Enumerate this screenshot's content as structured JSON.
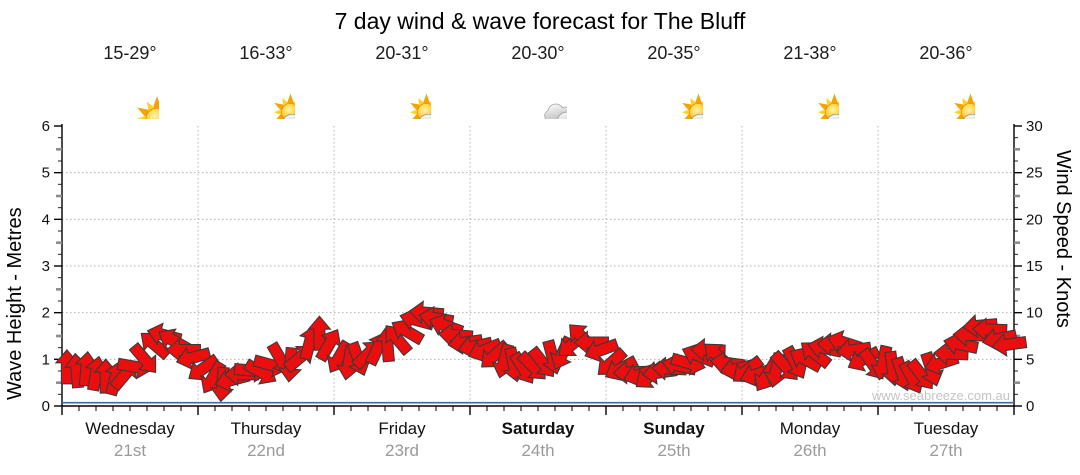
{
  "title": "7 day wind & wave forecast for The Bluff",
  "watermark": "www.seabreeze.com.au",
  "axes": {
    "left": {
      "label": "Wave Height - Metres",
      "ticks": [
        0,
        1,
        2,
        3,
        4,
        5,
        6
      ],
      "range": [
        0,
        6
      ]
    },
    "right": {
      "label": "Wind Speed - Knots",
      "ticks": [
        0,
        5,
        10,
        15,
        20,
        25,
        30
      ],
      "range": [
        0,
        30
      ]
    }
  },
  "days": [
    {
      "name": "Wednesday",
      "date": "21st",
      "temp": "15-29°",
      "icon": "sunny",
      "weekend": false
    },
    {
      "name": "Thursday",
      "date": "22nd",
      "temp": "16-33°",
      "icon": "partly-cloudy",
      "weekend": false
    },
    {
      "name": "Friday",
      "date": "23rd",
      "temp": "20-31°",
      "icon": "partly-cloudy",
      "weekend": false
    },
    {
      "name": "Saturday",
      "date": "24th",
      "temp": "20-30°",
      "icon": "cloudy",
      "weekend": true
    },
    {
      "name": "Sunday",
      "date": "25th",
      "temp": "20-35°",
      "icon": "partly-cloudy",
      "weekend": true
    },
    {
      "name": "Monday",
      "date": "26th",
      "temp": "21-38°",
      "icon": "partly-cloudy",
      "weekend": false
    },
    {
      "name": "Tuesday",
      "date": "27th",
      "temp": "20-36°",
      "icon": "partly-cloudy",
      "weekend": false
    }
  ],
  "chart_data": {
    "type": "scatter",
    "title": "7 day wind & wave forecast for The Bluff",
    "x_categories": [
      "Wednesday 21st",
      "Thursday 22nd",
      "Friday 23rd",
      "Saturday 24th",
      "Sunday 25th",
      "Monday 26th",
      "Tuesday 27th"
    ],
    "ylabel_left": "Wave Height - Metres",
    "ylabel_right": "Wind Speed - Knots",
    "ylim_left": [
      0,
      6
    ],
    "ylim_right": [
      0,
      30
    ],
    "grid": "dotted, horizontal each metre, vertical each day boundary",
    "legend": "none",
    "marker": "red block arrows showing wind speed (right axis) and direction",
    "arrow_color": "#ea0e0e",
    "arrow_outline": "#3a3a3a",
    "wave_line_color": "#3a6ea5",
    "wave_height_m_flat": 0.05,
    "samples_per_day": 14,
    "wind_knots": [
      [
        4.2,
        3.8,
        4.0,
        3.5,
        3.2,
        3.0,
        3.4,
        4.2,
        5.0,
        6.6,
        7.6,
        7.0,
        6.0,
        5.2
      ],
      [
        4.0,
        3.0,
        2.3,
        2.8,
        3.4,
        3.8,
        3.6,
        4.4,
        5.0,
        4.4,
        5.2,
        6.8,
        7.8,
        6.6
      ],
      [
        5.2,
        4.6,
        5.0,
        5.6,
        6.2,
        6.6,
        7.2,
        8.0,
        9.2,
        10.0,
        9.4,
        8.6,
        7.6,
        6.8
      ],
      [
        6.4,
        6.0,
        5.4,
        4.8,
        4.4,
        4.0,
        4.2,
        4.6,
        5.2,
        5.6,
        6.6,
        7.4,
        6.8,
        6.0
      ],
      [
        4.6,
        4.0,
        3.6,
        3.4,
        3.2,
        3.6,
        4.0,
        4.3,
        4.6,
        5.4,
        6.0,
        5.4,
        4.6,
        4.0
      ],
      [
        3.8,
        3.4,
        3.2,
        3.8,
        4.2,
        4.6,
        5.0,
        5.6,
        6.2,
        6.6,
        6.8,
        6.0,
        5.0,
        4.4
      ],
      [
        4.6,
        4.0,
        3.4,
        3.0,
        3.3,
        3.9,
        4.6,
        5.6,
        6.6,
        7.6,
        8.6,
        8.2,
        7.2,
        6.6
      ]
    ],
    "wind_dir_deg_cw_from_up": [
      [
        0,
        355,
        5,
        10,
        0,
        15,
        40,
        100,
        140,
        310,
        285,
        300,
        270,
        255
      ],
      [
        235,
        210,
        185,
        255,
        270,
        95,
        120,
        105,
        150,
        185,
        50,
        15,
        0,
        30
      ],
      [
        210,
        190,
        160,
        45,
        25,
        355,
        320,
        300,
        285,
        275,
        280,
        290,
        275,
        262
      ],
      [
        258,
        248,
        228,
        195,
        168,
        148,
        135,
        142,
        165,
        205,
        230,
        315,
        270,
        250
      ],
      [
        228,
        242,
        268,
        252,
        232,
        262,
        272,
        282,
        105,
        292,
        272,
        312,
        278,
        258
      ],
      [
        232,
        252,
        212,
        192,
        138,
        152,
        298,
        308,
        282,
        272,
        288,
        262,
        242,
        145
      ],
      [
        192,
        172,
        162,
        152,
        142,
        162,
        252,
        272,
        282,
        272,
        265,
        272,
        258,
        262
      ]
    ]
  }
}
